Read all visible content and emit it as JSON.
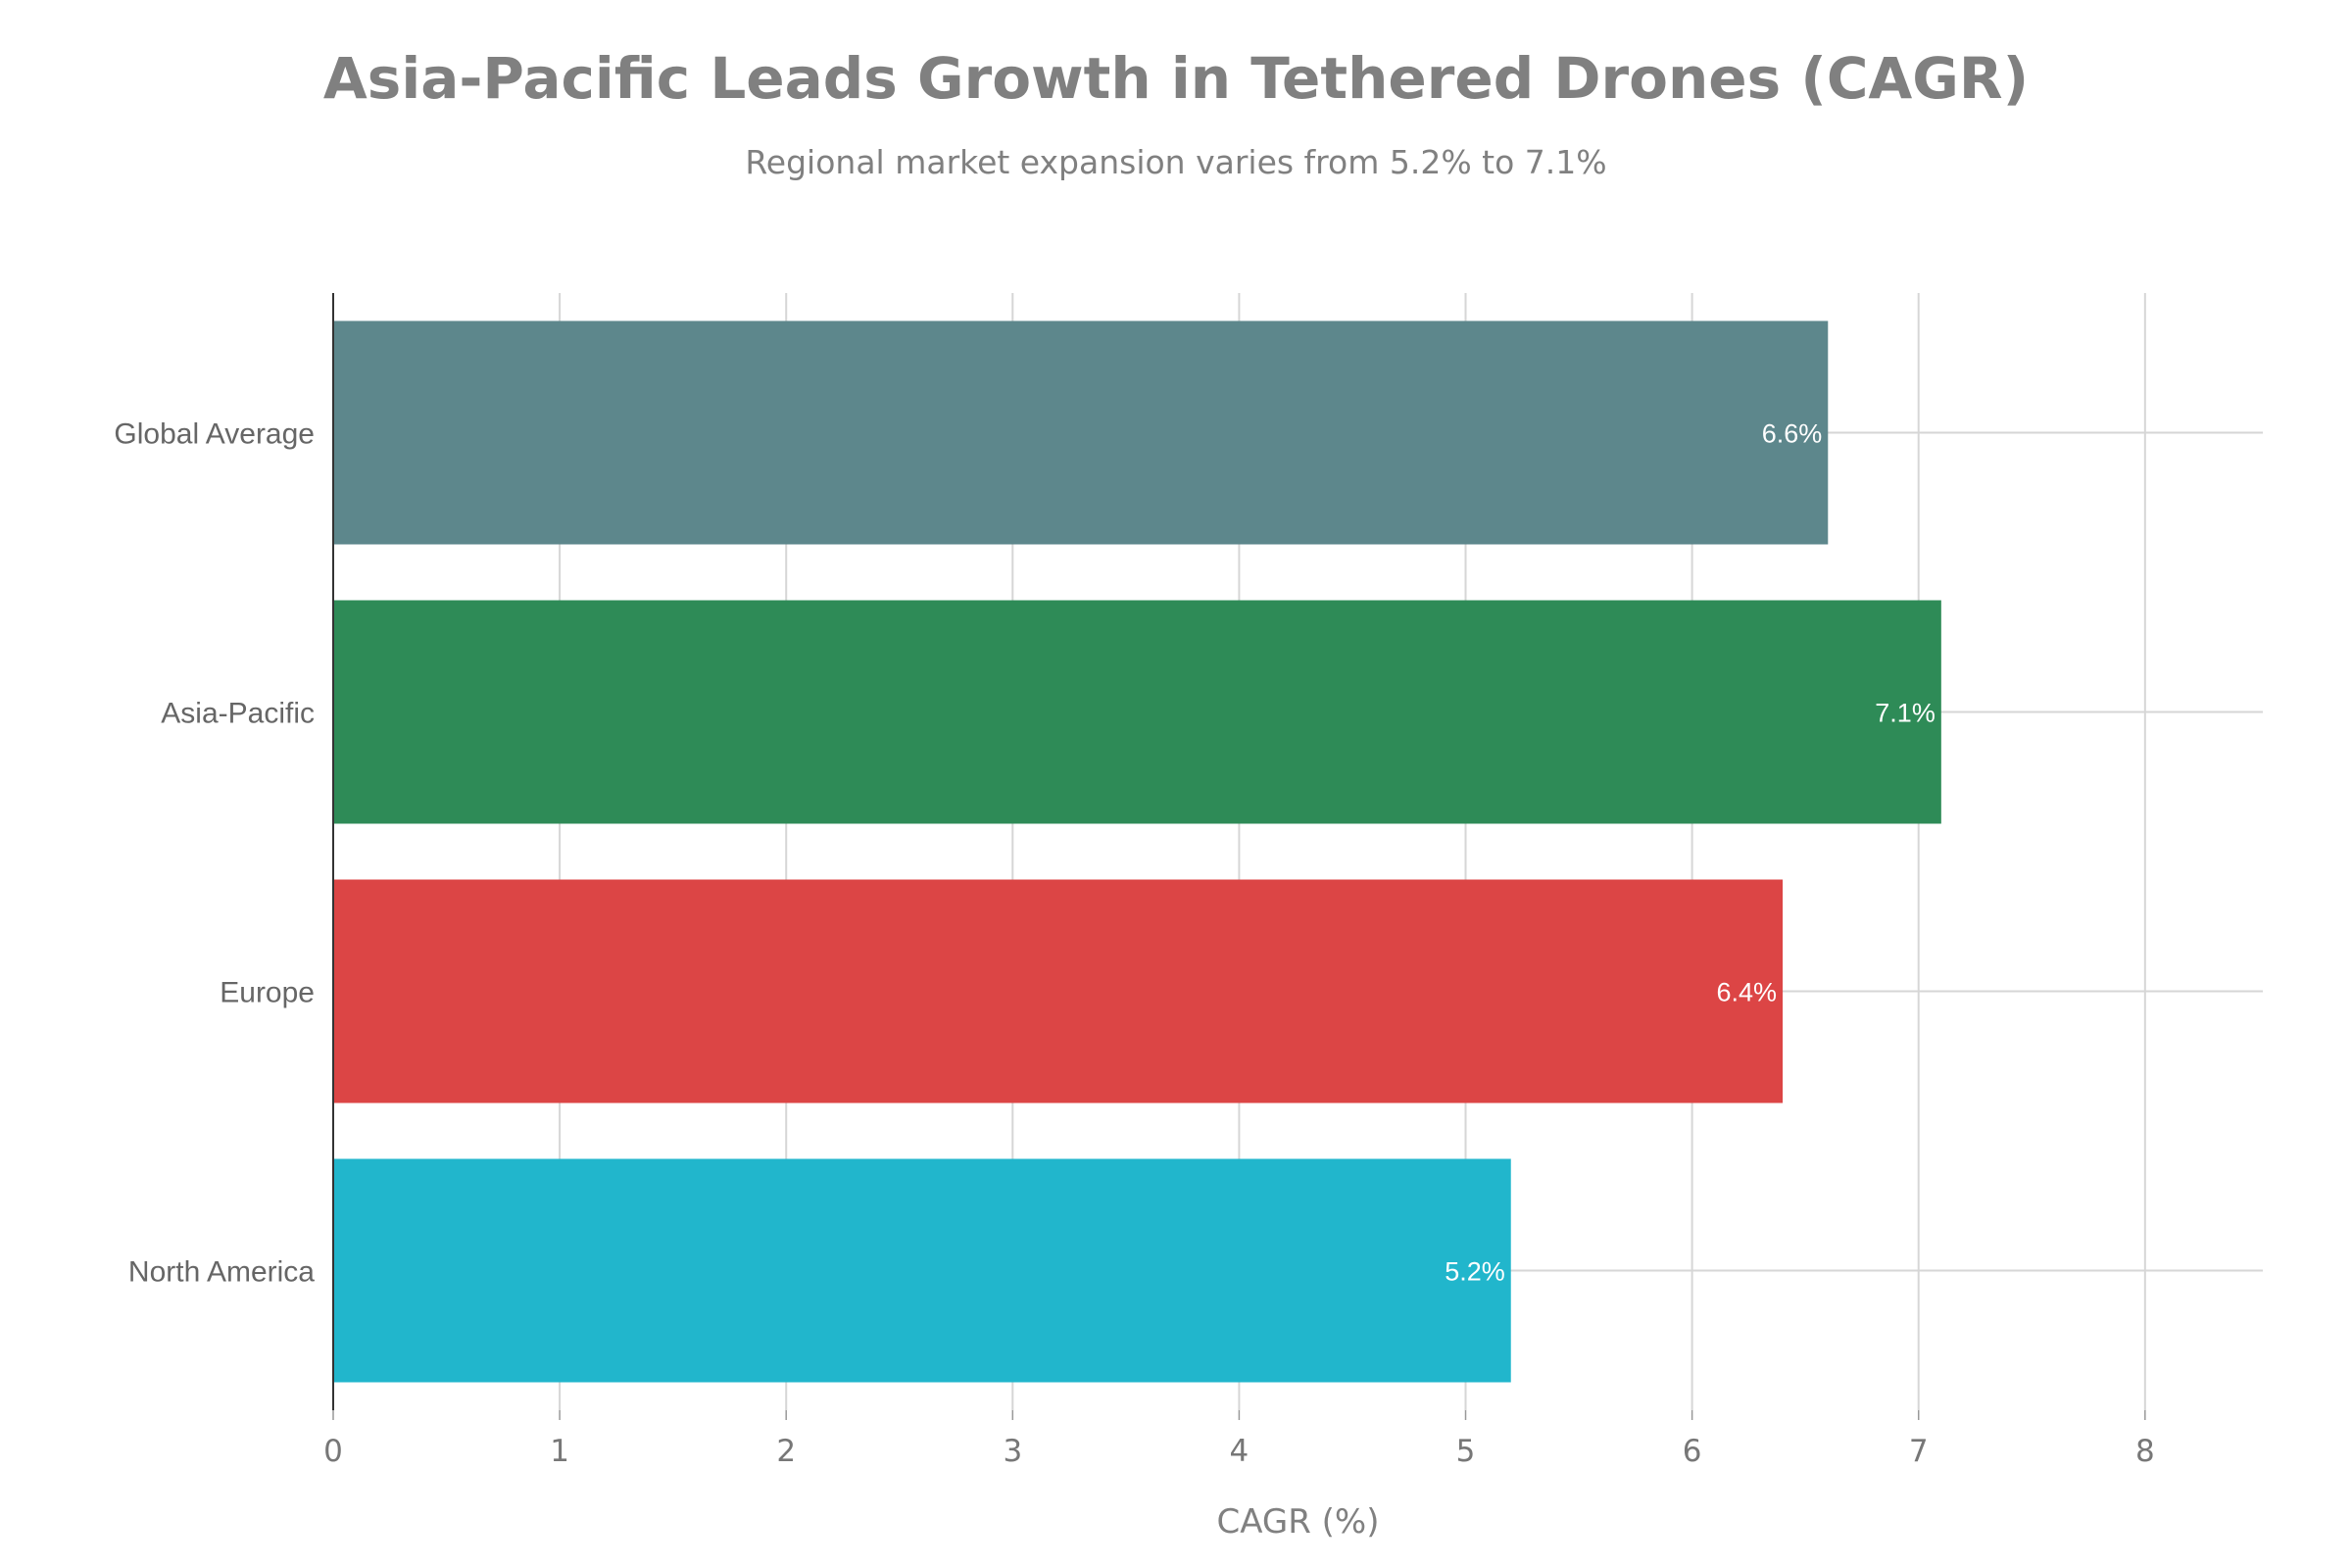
{
  "chart_data": {
    "type": "bar",
    "orientation": "horizontal",
    "title": "Asia-Pacific Leads Growth in Tethered Drones (CAGR)",
    "subtitle": "Regional market expansion varies from 5.2% to 7.1%",
    "xlabel": "CAGR (%)",
    "ylabel": "",
    "categories": [
      "North America",
      "Europe",
      "Asia-Pacific",
      "Global Average"
    ],
    "values": [
      5.2,
      6.4,
      7.1,
      6.6
    ],
    "data_labels": [
      "5.2%",
      "6.4%",
      "7.1%",
      "6.6%"
    ],
    "colors": [
      "#21B6CC",
      "#DC4545",
      "#2E8B57",
      "#5D878C"
    ],
    "xlim": [
      0,
      8.52
    ],
    "xticks": [
      0,
      1,
      2,
      3,
      4,
      5,
      6,
      7,
      8
    ],
    "grid": true,
    "legend": "none"
  }
}
